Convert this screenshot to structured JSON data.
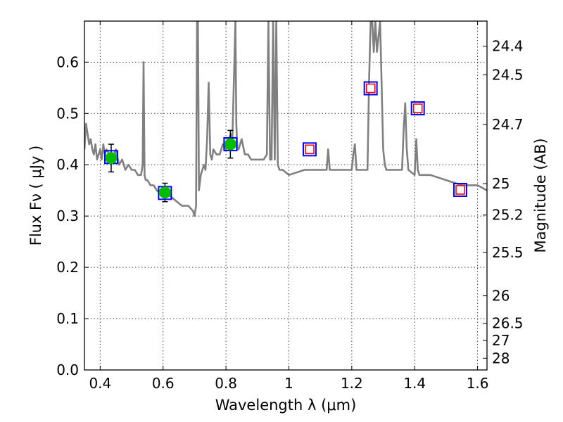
{
  "chart_data": {
    "type": "scatter",
    "xlabel": "Wavelength  λ (μm)",
    "ylabel": "Flux  Fν  ( μJy )",
    "ylabel_right": "Magnitude (AB)",
    "xlim": [
      0.35,
      1.63
    ],
    "ylim": [
      0.0,
      0.68
    ],
    "x_ticks": [
      0.4,
      0.6,
      0.8,
      1,
      1.2,
      1.4,
      1.6
    ],
    "x_tick_labels": [
      "0.4",
      "0.6",
      "0.8",
      "1",
      "1.2",
      "1.4",
      "1.6"
    ],
    "y_ticks": [
      0.0,
      0.1,
      0.2,
      0.3,
      0.4,
      0.5,
      0.6
    ],
    "y_tick_labels": [
      "0.0",
      "0.1",
      "0.2",
      "0.3",
      "0.4",
      "0.5",
      "0.6"
    ],
    "right_ticks": [
      {
        "label": "24.4",
        "flux": 0.631
      },
      {
        "label": "24.5",
        "flux": 0.5754
      },
      {
        "label": "24.7",
        "flux": 0.4786
      },
      {
        "label": "25",
        "flux": 0.3631
      },
      {
        "label": "25.2",
        "flux": 0.302
      },
      {
        "label": "25.5",
        "flux": 0.2291
      },
      {
        "label": "26",
        "flux": 0.1445
      },
      {
        "label": "26.5",
        "flux": 0.0912
      },
      {
        "label": "27",
        "flux": 0.0575
      },
      {
        "label": "28",
        "flux": 0.0229
      }
    ],
    "grid": true,
    "colors": {
      "spectrum": "#808080",
      "observed_fill": "#00bb00",
      "model_box": "#0000ff",
      "upper_box": "#ff0000",
      "error_bar": "#000000"
    },
    "series": [
      {
        "kind": "line",
        "x": [
          0.35,
          0.355,
          0.36,
          0.365,
          0.37,
          0.375,
          0.38,
          0.385,
          0.39,
          0.395,
          0.4,
          0.405,
          0.41,
          0.415,
          0.42,
          0.43,
          0.44,
          0.45,
          0.46,
          0.47,
          0.48,
          0.49,
          0.5,
          0.51,
          0.52,
          0.53,
          0.535,
          0.538,
          0.541,
          0.545,
          0.55,
          0.56,
          0.57,
          0.58,
          0.6,
          0.62,
          0.64,
          0.66,
          0.68,
          0.695,
          0.7,
          0.705,
          0.708,
          0.711,
          0.714,
          0.72,
          0.73,
          0.735,
          0.74,
          0.745,
          0.75,
          0.755,
          0.76,
          0.77,
          0.78,
          0.79,
          0.8,
          0.81,
          0.815,
          0.82,
          0.83,
          0.833,
          0.836,
          0.84,
          0.85,
          0.86,
          0.87,
          0.88,
          0.89,
          0.9,
          0.91,
          0.92,
          0.93,
          0.935,
          0.94,
          0.945,
          0.95,
          0.955,
          0.96,
          0.965,
          0.97,
          0.98,
          1.0,
          1.05,
          1.1,
          1.12,
          1.125,
          1.13,
          1.15,
          1.2,
          1.205,
          1.21,
          1.215,
          1.22,
          1.25,
          1.255,
          1.26,
          1.265,
          1.27,
          1.275,
          1.28,
          1.29,
          1.3,
          1.305,
          1.31,
          1.35,
          1.36,
          1.365,
          1.37,
          1.375,
          1.38,
          1.4,
          1.405,
          1.41,
          1.415,
          1.42,
          1.45,
          1.5,
          1.55,
          1.6,
          1.63
        ],
        "y": [
          0.43,
          0.48,
          0.46,
          0.44,
          0.45,
          0.43,
          0.42,
          0.44,
          0.41,
          0.42,
          0.43,
          0.41,
          0.44,
          0.42,
          0.43,
          0.42,
          0.41,
          0.43,
          0.4,
          0.41,
          0.39,
          0.4,
          0.39,
          0.39,
          0.38,
          0.38,
          0.4,
          0.6,
          0.38,
          0.37,
          0.37,
          0.36,
          0.36,
          0.35,
          0.34,
          0.34,
          0.33,
          0.32,
          0.32,
          0.31,
          0.3,
          0.32,
          0.68,
          0.68,
          0.35,
          0.38,
          0.4,
          0.39,
          0.45,
          0.56,
          0.42,
          0.41,
          0.43,
          0.42,
          0.42,
          0.44,
          0.43,
          0.45,
          0.46,
          0.44,
          0.68,
          0.48,
          0.43,
          0.43,
          0.45,
          0.42,
          0.42,
          0.41,
          0.41,
          0.41,
          0.41,
          0.41,
          0.42,
          0.68,
          0.41,
          0.41,
          0.68,
          0.41,
          0.68,
          0.4,
          0.39,
          0.39,
          0.38,
          0.39,
          0.39,
          0.39,
          0.43,
          0.39,
          0.39,
          0.39,
          0.42,
          0.44,
          0.39,
          0.39,
          0.39,
          0.56,
          0.68,
          0.68,
          0.62,
          0.68,
          0.62,
          0.68,
          0.43,
          0.4,
          0.39,
          0.39,
          0.39,
          0.47,
          0.52,
          0.43,
          0.39,
          0.38,
          0.45,
          0.39,
          0.38,
          0.38,
          0.38,
          0.37,
          0.36,
          0.36,
          0.35
        ]
      },
      {
        "kind": "observed",
        "x": [
          0.435,
          0.606,
          0.814
        ],
        "y": [
          0.413,
          0.346,
          0.44
        ],
        "yerr": [
          0.027,
          0.018,
          0.027
        ]
      },
      {
        "kind": "model",
        "x": [
          0.435,
          0.606,
          0.814,
          1.066,
          1.26,
          1.41,
          1.545
        ],
        "y": [
          0.415,
          0.345,
          0.44,
          0.43,
          0.549,
          0.51,
          0.351
        ]
      },
      {
        "kind": "upper",
        "x": [
          1.066,
          1.26,
          1.41,
          1.545
        ],
        "y": [
          0.43,
          0.549,
          0.51,
          0.351
        ]
      }
    ]
  }
}
